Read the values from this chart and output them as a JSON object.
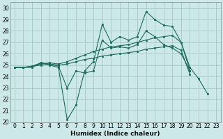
{
  "xlabel": "Humidex (Indice chaleur)",
  "bg_color": "#cce8e8",
  "grid_color": "#aacccc",
  "line_color": "#1a6b5a",
  "xlim": [
    -0.5,
    23.5
  ],
  "ylim": [
    20,
    30.5
  ],
  "xticks": [
    0,
    1,
    2,
    3,
    4,
    5,
    6,
    7,
    8,
    9,
    10,
    11,
    12,
    13,
    14,
    15,
    16,
    17,
    18,
    19,
    20,
    21,
    22,
    23
  ],
  "yticks": [
    20,
    21,
    22,
    23,
    24,
    25,
    26,
    27,
    28,
    29,
    30
  ],
  "series": [
    [
      24.8,
      24.8,
      24.8,
      25.2,
      25.0,
      24.8,
      20.2,
      21.5,
      24.5,
      25.3,
      28.6,
      27.0,
      27.5,
      27.2,
      27.5,
      29.7,
      29.0,
      28.5,
      28.4,
      27.0,
      24.8,
      23.8,
      22.5,
      null
    ],
    [
      24.8,
      24.8,
      24.9,
      25.2,
      25.1,
      24.9,
      23.0,
      24.5,
      24.3,
      24.5,
      27.2,
      26.5,
      26.6,
      26.5,
      26.8,
      28.0,
      27.5,
      26.8,
      26.5,
      26.0,
      24.5,
      null,
      null,
      null
    ],
    [
      24.8,
      24.8,
      24.9,
      25.1,
      25.2,
      25.1,
      25.3,
      25.6,
      25.9,
      26.2,
      26.4,
      26.6,
      26.7,
      26.8,
      27.0,
      27.2,
      27.4,
      27.5,
      27.6,
      27.0,
      24.5,
      null,
      null,
      null
    ],
    [
      24.8,
      24.8,
      24.9,
      25.0,
      25.1,
      25.0,
      25.1,
      25.3,
      25.5,
      25.6,
      25.8,
      25.9,
      26.0,
      26.1,
      26.2,
      26.4,
      26.5,
      26.6,
      26.7,
      26.3,
      24.2,
      null,
      null,
      null
    ]
  ]
}
